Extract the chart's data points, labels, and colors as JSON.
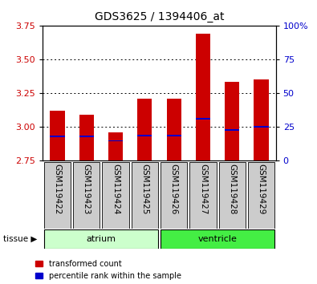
{
  "title": "GDS3625 / 1394406_at",
  "samples": [
    "GSM119422",
    "GSM119423",
    "GSM119424",
    "GSM119425",
    "GSM119426",
    "GSM119427",
    "GSM119428",
    "GSM119429"
  ],
  "transformed_count": [
    3.12,
    3.09,
    2.96,
    3.21,
    3.21,
    3.69,
    3.33,
    3.35
  ],
  "bar_bottom": 2.75,
  "percentile_rank_values": [
    2.93,
    2.93,
    2.895,
    2.935,
    2.935,
    3.06,
    2.975,
    3.0
  ],
  "ylim": [
    2.75,
    3.75
  ],
  "yticks": [
    2.75,
    3.0,
    3.25,
    3.5,
    3.75
  ],
  "y2ticks": [
    0,
    25,
    50,
    75,
    100
  ],
  "y2labels": [
    "0",
    "25",
    "50",
    "75",
    "100%"
  ],
  "ylabel_color": "#cc0000",
  "y2label_color": "#0000cc",
  "bar_color": "#cc0000",
  "percentile_color": "#0000cc",
  "atrium_color": "#ccffcc",
  "ventricle_color": "#44ee44",
  "gray_box_color": "#cccccc",
  "legend": [
    "transformed count",
    "percentile rank within the sample"
  ],
  "gridlines": [
    3.0,
    3.25,
    3.5
  ],
  "title_fontsize": 10,
  "tick_fontsize": 8,
  "label_fontsize": 7.5,
  "tissue_fontsize": 8
}
